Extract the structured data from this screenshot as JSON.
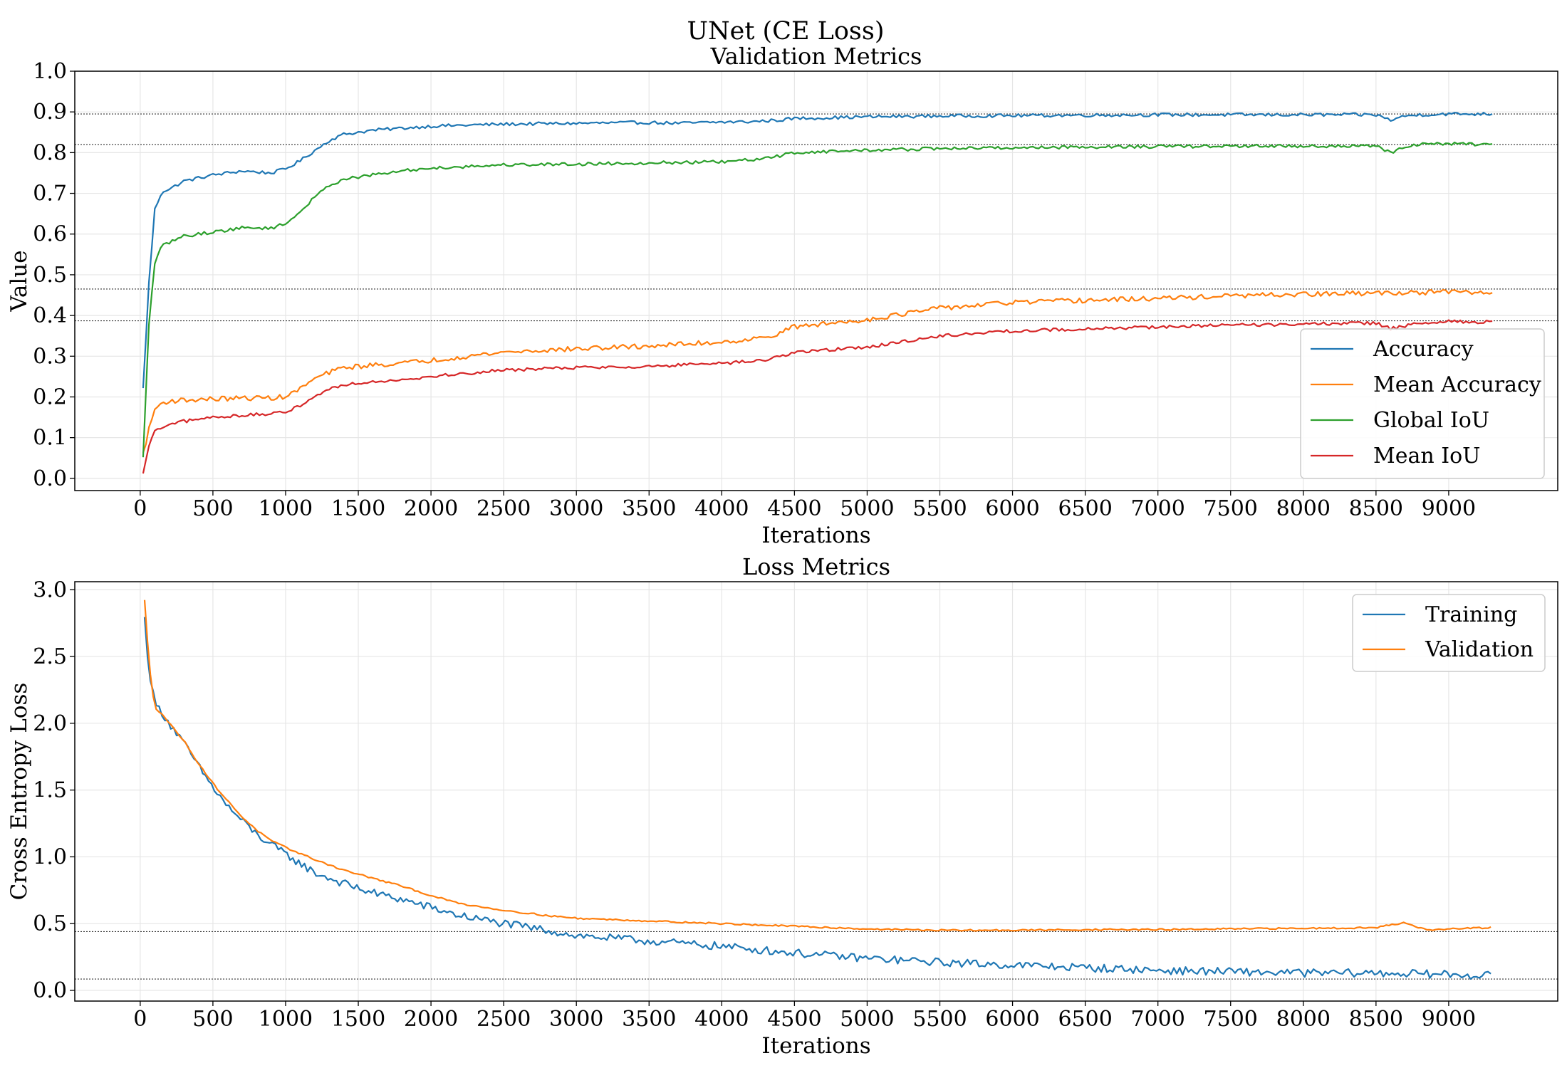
{
  "figure": {
    "suptitle": "UNet (CE Loss)"
  },
  "colors": {
    "c0": "#1f77b4",
    "c1": "#ff7f0e",
    "c2": "#2ca02c",
    "c3": "#d62728"
  },
  "chart_data": [
    {
      "type": "line",
      "title": "Validation Metrics",
      "xlabel": "Iterations",
      "ylabel": "Value",
      "xlim": [
        -450,
        9750
      ],
      "ylim": [
        -0.03,
        1.0
      ],
      "xticks": [
        0,
        500,
        1000,
        1500,
        2000,
        2500,
        3000,
        3500,
        4000,
        4500,
        5000,
        5500,
        6000,
        6500,
        7000,
        7500,
        8000,
        8500,
        9000
      ],
      "xtick_labels": [
        "0",
        "500",
        "1000",
        "1500",
        "2000",
        "2500",
        "3000",
        "3500",
        "4000",
        "4500",
        "5000",
        "5500",
        "6000",
        "6500",
        "7000",
        "7500",
        "8000",
        "8500",
        "9000"
      ],
      "yticks": [
        0.0,
        0.1,
        0.2,
        0.3,
        0.4,
        0.5,
        0.6,
        0.7,
        0.8,
        0.9,
        1.0
      ],
      "ytick_labels": [
        "0.0",
        "0.1",
        "0.2",
        "0.3",
        "0.4",
        "0.5",
        "0.6",
        "0.7",
        "0.8",
        "0.9",
        "1.0"
      ],
      "grid": true,
      "legend_position": "right",
      "hlines": [
        0.895,
        0.82,
        0.465,
        0.387
      ],
      "series": [
        {
          "name": "Accuracy",
          "color": "#1f77b4",
          "noise": 0.004,
          "x": [
            20,
            60,
            100,
            150,
            200,
            300,
            500,
            700,
            900,
            1000,
            1100,
            1200,
            1300,
            1400,
            1600,
            1800,
            2000,
            2500,
            3000,
            3500,
            3700,
            4000,
            4200,
            4400,
            4500,
            5000,
            5500,
            6000,
            6500,
            7000,
            7500,
            8000,
            8500,
            8600,
            8700,
            8800,
            9000,
            9300
          ],
          "y": [
            0.22,
            0.48,
            0.66,
            0.705,
            0.71,
            0.73,
            0.745,
            0.755,
            0.75,
            0.76,
            0.78,
            0.805,
            0.83,
            0.845,
            0.855,
            0.86,
            0.865,
            0.87,
            0.872,
            0.874,
            0.872,
            0.875,
            0.876,
            0.88,
            0.884,
            0.888,
            0.89,
            0.891,
            0.892,
            0.893,
            0.893,
            0.893,
            0.893,
            0.88,
            0.89,
            0.893,
            0.895,
            0.895
          ]
        },
        {
          "name": "Mean Accuracy",
          "color": "#ff7f0e",
          "noise": 0.006,
          "x": [
            20,
            60,
            100,
            150,
            200,
            300,
            500,
            700,
            900,
            1000,
            1100,
            1200,
            1300,
            1400,
            1600,
            1800,
            2000,
            2500,
            3000,
            3500,
            4000,
            4300,
            4500,
            5000,
            5500,
            6000,
            6500,
            7000,
            7500,
            8000,
            8500,
            9000,
            9300
          ],
          "y": [
            0.06,
            0.12,
            0.17,
            0.185,
            0.19,
            0.192,
            0.195,
            0.197,
            0.198,
            0.2,
            0.22,
            0.245,
            0.26,
            0.272,
            0.278,
            0.283,
            0.29,
            0.31,
            0.318,
            0.325,
            0.335,
            0.345,
            0.372,
            0.39,
            0.418,
            0.432,
            0.437,
            0.442,
            0.448,
            0.452,
            0.455,
            0.458,
            0.455
          ]
        },
        {
          "name": "Global IoU",
          "color": "#2ca02c",
          "noise": 0.004,
          "x": [
            20,
            60,
            100,
            150,
            200,
            300,
            500,
            700,
            900,
            1000,
            1100,
            1200,
            1300,
            1400,
            1600,
            1800,
            2000,
            2500,
            3000,
            3500,
            4000,
            4300,
            4500,
            5000,
            5500,
            6000,
            6500,
            7000,
            7500,
            8000,
            8500,
            8600,
            8700,
            8800,
            9000,
            9300
          ],
          "y": [
            0.05,
            0.38,
            0.53,
            0.57,
            0.58,
            0.595,
            0.605,
            0.615,
            0.615,
            0.625,
            0.655,
            0.69,
            0.72,
            0.735,
            0.745,
            0.755,
            0.762,
            0.77,
            0.772,
            0.775,
            0.777,
            0.785,
            0.8,
            0.806,
            0.81,
            0.812,
            0.814,
            0.815,
            0.816,
            0.816,
            0.816,
            0.8,
            0.815,
            0.82,
            0.822,
            0.82
          ]
        },
        {
          "name": "Mean IoU",
          "color": "#d62728",
          "noise": 0.004,
          "x": [
            20,
            60,
            100,
            150,
            200,
            300,
            500,
            700,
            900,
            1000,
            1100,
            1200,
            1300,
            1400,
            1600,
            1800,
            2000,
            2500,
            3000,
            3500,
            4000,
            4300,
            4500,
            5000,
            5500,
            6000,
            6500,
            7000,
            7500,
            8000,
            8500,
            8600,
            8800,
            9000,
            9300
          ],
          "y": [
            0.01,
            0.08,
            0.115,
            0.125,
            0.13,
            0.14,
            0.15,
            0.155,
            0.158,
            0.162,
            0.18,
            0.2,
            0.22,
            0.23,
            0.238,
            0.243,
            0.25,
            0.266,
            0.272,
            0.275,
            0.282,
            0.29,
            0.31,
            0.322,
            0.35,
            0.362,
            0.367,
            0.372,
            0.376,
            0.379,
            0.381,
            0.368,
            0.38,
            0.385,
            0.384
          ]
        }
      ]
    },
    {
      "type": "line",
      "title": "Loss Metrics",
      "xlabel": "Iterations",
      "ylabel": "Cross Entropy Loss",
      "xlim": [
        -450,
        9750
      ],
      "ylim": [
        -0.08,
        3.06
      ],
      "xticks": [
        0,
        500,
        1000,
        1500,
        2000,
        2500,
        3000,
        3500,
        4000,
        4500,
        5000,
        5500,
        6000,
        6500,
        7000,
        7500,
        8000,
        8500,
        9000
      ],
      "xtick_labels": [
        "0",
        "500",
        "1000",
        "1500",
        "2000",
        "2500",
        "3000",
        "3500",
        "4000",
        "4500",
        "5000",
        "5500",
        "6000",
        "6500",
        "7000",
        "7500",
        "8000",
        "8500",
        "9000"
      ],
      "yticks": [
        0.0,
        0.5,
        1.0,
        1.5,
        2.0,
        2.5,
        3.0
      ],
      "ytick_labels": [
        "0.0",
        "0.5",
        "1.0",
        "1.5",
        "2.0",
        "2.5",
        "3.0"
      ],
      "grid": true,
      "legend_position": "top-right",
      "hlines": [
        0.44,
        0.085
      ],
      "series": [
        {
          "name": "Training",
          "color": "#1f77b4",
          "noise": 0.03,
          "x": [
            30,
            60,
            100,
            150,
            200,
            300,
            400,
            500,
            600,
            700,
            800,
            900,
            1000,
            1200,
            1400,
            1600,
            1800,
            2000,
            2200,
            2500,
            2800,
            3000,
            3500,
            4000,
            4500,
            5000,
            5500,
            6000,
            6500,
            7000,
            7500,
            8000,
            8500,
            9000,
            9300
          ],
          "y": [
            2.78,
            2.4,
            2.15,
            2.08,
            2.0,
            1.85,
            1.68,
            1.52,
            1.38,
            1.27,
            1.17,
            1.09,
            1.02,
            0.88,
            0.8,
            0.73,
            0.68,
            0.62,
            0.56,
            0.5,
            0.45,
            0.41,
            0.37,
            0.33,
            0.28,
            0.24,
            0.21,
            0.19,
            0.17,
            0.15,
            0.14,
            0.13,
            0.13,
            0.12,
            0.11
          ]
        },
        {
          "name": "Validation",
          "color": "#ff7f0e",
          "noise": 0.006,
          "x": [
            30,
            60,
            100,
            150,
            200,
            300,
            400,
            500,
            600,
            700,
            800,
            900,
            1000,
            1200,
            1400,
            1600,
            1800,
            2000,
            2200,
            2500,
            2800,
            3000,
            3500,
            4000,
            4500,
            5000,
            5500,
            6000,
            6500,
            7000,
            7500,
            8000,
            8500,
            8700,
            8850,
            9000,
            9300
          ],
          "y": [
            2.92,
            2.45,
            2.12,
            2.07,
            2.0,
            1.87,
            1.7,
            1.55,
            1.42,
            1.3,
            1.2,
            1.12,
            1.07,
            0.98,
            0.9,
            0.84,
            0.78,
            0.71,
            0.65,
            0.6,
            0.56,
            0.54,
            0.52,
            0.5,
            0.48,
            0.46,
            0.45,
            0.45,
            0.455,
            0.455,
            0.46,
            0.465,
            0.47,
            0.51,
            0.45,
            0.46,
            0.47
          ]
        }
      ]
    }
  ]
}
